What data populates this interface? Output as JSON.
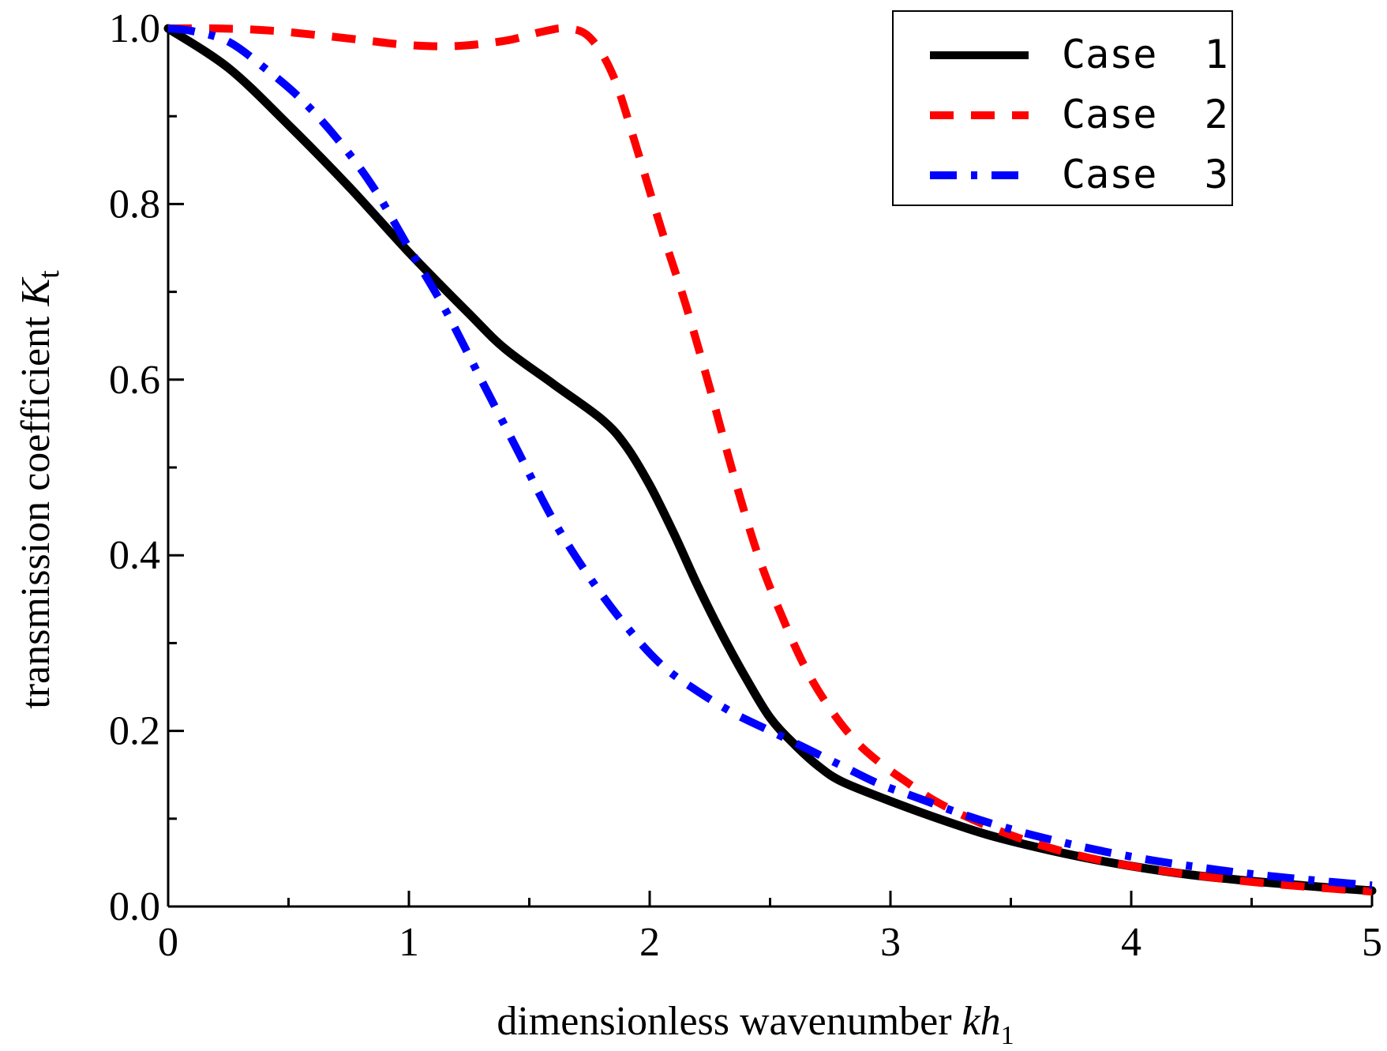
{
  "chart_data": {
    "type": "line",
    "title": "",
    "xlabel": {
      "prefix": "dimensionless wavenumber ",
      "var": "kh",
      "sub": "1"
    },
    "ylabel": {
      "prefix": "transmission coefficient ",
      "var": "K",
      "sub": "t"
    },
    "xlim": [
      0,
      5
    ],
    "ylim": [
      0,
      1.0
    ],
    "x_ticks": [
      "0",
      "1",
      "2",
      "3",
      "4",
      "5"
    ],
    "y_ticks": [
      "0.0",
      "0.2",
      "0.4",
      "0.6",
      "0.8",
      "1.0"
    ],
    "grid": false,
    "legend_position": "top-right",
    "series": [
      {
        "name": "Case  1",
        "color": "#000000",
        "dash": "solid",
        "x": [
          0,
          0.25,
          0.5,
          0.75,
          1.0,
          1.25,
          1.4,
          1.6,
          1.8,
          1.9,
          2.0,
          2.1,
          2.2,
          2.3,
          2.4,
          2.5,
          2.6,
          2.7,
          2.8,
          3.0,
          3.2,
          3.4,
          3.6,
          3.8,
          4.0,
          4.25,
          4.5,
          4.75,
          5.0
        ],
        "y": [
          1.0,
          0.955,
          0.89,
          0.82,
          0.745,
          0.675,
          0.635,
          0.595,
          0.555,
          0.525,
          0.48,
          0.425,
          0.365,
          0.31,
          0.26,
          0.215,
          0.185,
          0.16,
          0.142,
          0.12,
          0.1,
          0.082,
          0.068,
          0.056,
          0.046,
          0.036,
          0.029,
          0.023,
          0.018
        ]
      },
      {
        "name": "Case  2",
        "color": "#ff0000",
        "dash": "dash",
        "x": [
          0,
          0.2,
          0.4,
          0.6,
          0.8,
          1.0,
          1.2,
          1.4,
          1.55,
          1.65,
          1.75,
          1.85,
          1.95,
          2.05,
          2.15,
          2.25,
          2.35,
          2.45,
          2.55,
          2.65,
          2.75,
          2.85,
          2.95,
          3.05,
          3.2,
          3.4,
          3.6,
          3.8,
          4.0,
          4.25,
          4.5,
          4.75,
          5.0
        ],
        "y": [
          1.0,
          1.0,
          0.998,
          0.993,
          0.987,
          0.981,
          0.98,
          0.986,
          0.996,
          1.0,
          0.99,
          0.945,
          0.86,
          0.77,
          0.685,
          0.59,
          0.49,
          0.4,
          0.33,
          0.27,
          0.225,
          0.19,
          0.165,
          0.145,
          0.118,
          0.092,
          0.072,
          0.057,
          0.046,
          0.036,
          0.028,
          0.022,
          0.017
        ]
      },
      {
        "name": "Case  3",
        "color": "#0000ff",
        "dash": "dashdot",
        "x": [
          0,
          0.1,
          0.25,
          0.4,
          0.55,
          0.7,
          0.85,
          1.0,
          1.15,
          1.3,
          1.45,
          1.6,
          1.75,
          1.9,
          2.05,
          2.2,
          2.35,
          2.5,
          2.65,
          2.8,
          2.95,
          3.1,
          3.3,
          3.5,
          3.7,
          3.9,
          4.1,
          4.3,
          4.5,
          4.75,
          5.0
        ],
        "y": [
          1.0,
          0.997,
          0.985,
          0.955,
          0.92,
          0.875,
          0.82,
          0.75,
          0.68,
          0.6,
          0.52,
          0.44,
          0.375,
          0.32,
          0.275,
          0.245,
          0.22,
          0.2,
          0.18,
          0.16,
          0.14,
          0.125,
          0.105,
          0.088,
          0.074,
          0.062,
          0.052,
          0.044,
          0.037,
          0.03,
          0.024
        ]
      }
    ]
  }
}
